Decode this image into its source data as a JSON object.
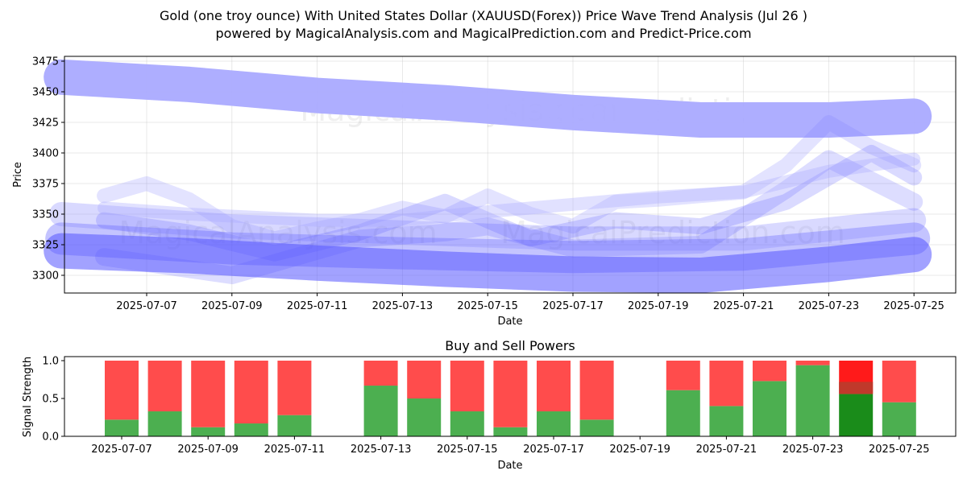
{
  "title": "Gold (one troy ounce) With United States Dollar (XAUUSD(Forex)) Price Wave Trend Analysis (Jul 26 )",
  "subtitle": "powered by MagicalAnalysis.com and MagicalPrediction.com and Predict-Price.com",
  "watermark": [
    "MagicalAnalysis.com",
    "MagicalPrediction.com"
  ],
  "chart_data": [
    {
      "type": "line",
      "title": "",
      "xlabel": "Date",
      "ylabel": "Price",
      "ylim": [
        3285,
        3478
      ],
      "xlim": [
        "2025-07-05",
        "2025-07-26"
      ],
      "yticks": [
        3300,
        3325,
        3350,
        3375,
        3400,
        3425,
        3450,
        3475
      ],
      "xticks": [
        "2025-07-07",
        "2025-07-09",
        "2025-07-11",
        "2025-07-13",
        "2025-07-15",
        "2025-07-17",
        "2025-07-19",
        "2025-07-21",
        "2025-07-23",
        "2025-07-25"
      ],
      "grid": true,
      "colors": {
        "light": "#aaaaff",
        "mid": "#8080ff",
        "dark": "#5555ff"
      },
      "series": [
        {
          "x": [
            "2025-07-05",
            "2025-07-08",
            "2025-07-11",
            "2025-07-14",
            "2025-07-17",
            "2025-07-20",
            "2025-07-23",
            "2025-07-25"
          ],
          "values": [
            3462,
            3456,
            3447,
            3441,
            3433,
            3427,
            3427,
            3430
          ]
        },
        {
          "x": [
            "2025-07-05",
            "2025-07-08",
            "2025-07-11",
            "2025-07-14",
            "2025-07-17",
            "2025-07-20",
            "2025-07-23",
            "2025-07-25"
          ],
          "values": [
            3320,
            3316,
            3310,
            3305,
            3301,
            3300,
            3309,
            3317
          ]
        },
        {
          "x": [
            "2025-07-05",
            "2025-07-09",
            "2025-07-13",
            "2025-07-17",
            "2025-07-21",
            "2025-07-25"
          ],
          "values": [
            3330,
            3322,
            3318,
            3315,
            3317,
            3330
          ]
        },
        {
          "x": [
            "2025-07-05",
            "2025-07-09",
            "2025-07-13",
            "2025-07-17",
            "2025-07-21",
            "2025-07-25"
          ],
          "values": [
            3350,
            3340,
            3335,
            3330,
            3330,
            3345
          ]
        },
        {
          "x": [
            "2025-07-06",
            "2025-07-07",
            "2025-07-08",
            "2025-07-09",
            "2025-07-10",
            "2025-07-11",
            "2025-07-12",
            "2025-07-13",
            "2025-07-14",
            "2025-07-15",
            "2025-07-16",
            "2025-07-17",
            "2025-07-18",
            "2025-07-19",
            "2025-07-20",
            "2025-07-21",
            "2025-07-22",
            "2025-07-23",
            "2025-07-24",
            "2025-07-25"
          ],
          "values": [
            3365,
            3375,
            3362,
            3340,
            3330,
            3338,
            3345,
            3355,
            3348,
            3365,
            3350,
            3340,
            3360,
            3362,
            3365,
            3368,
            3390,
            3425,
            3405,
            3390
          ]
        },
        {
          "x": [
            "2025-07-06",
            "2025-07-08",
            "2025-07-10",
            "2025-07-12",
            "2025-07-14",
            "2025-07-16",
            "2025-07-18",
            "2025-07-20",
            "2025-07-22",
            "2025-07-24",
            "2025-07-25"
          ],
          "values": [
            3345,
            3335,
            3318,
            3335,
            3360,
            3330,
            3345,
            3340,
            3360,
            3400,
            3380
          ]
        },
        {
          "x": [
            "2025-07-06",
            "2025-07-09",
            "2025-07-12",
            "2025-07-14",
            "2025-07-15",
            "2025-07-17",
            "2025-07-20",
            "2025-07-22",
            "2025-07-23",
            "2025-07-25"
          ],
          "values": [
            3315,
            3300,
            3330,
            3335,
            3340,
            3322,
            3325,
            3370,
            3395,
            3360
          ]
        },
        {
          "x": [
            "2025-07-06",
            "2025-07-08",
            "2025-07-11",
            "2025-07-13",
            "2025-07-15",
            "2025-07-17",
            "2025-07-19",
            "2025-07-21",
            "2025-07-23",
            "2025-07-25"
          ],
          "values": [
            3355,
            3350,
            3345,
            3345,
            3352,
            3358,
            3364,
            3368,
            3385,
            3395
          ]
        }
      ]
    },
    {
      "type": "bar",
      "title": "Buy and Sell Powers",
      "xlabel": "Date",
      "ylabel": "Signal Strength",
      "ylim": [
        0,
        1.05
      ],
      "yticks": [
        0.0,
        0.5,
        1.0
      ],
      "xticks": [
        "2025-07-07",
        "2025-07-09",
        "2025-07-11",
        "2025-07-13",
        "2025-07-15",
        "2025-07-17",
        "2025-07-19",
        "2025-07-21",
        "2025-07-23",
        "2025-07-25"
      ],
      "colors": {
        "buy": "#4caf50",
        "sell": "#ff4c4c",
        "buy_strong": "#1a8c1a",
        "sell_strong": "#ff1a1a",
        "mix": "#c0392b"
      },
      "categories": [
        "2025-07-07",
        "2025-07-08",
        "2025-07-09",
        "2025-07-10",
        "2025-07-11",
        "2025-07-13",
        "2025-07-14",
        "2025-07-15",
        "2025-07-16",
        "2025-07-17",
        "2025-07-18",
        "2025-07-20",
        "2025-07-21",
        "2025-07-22",
        "2025-07-23",
        "2025-07-24",
        "2025-07-25"
      ],
      "series": [
        {
          "values": [
            0.22,
            0.33,
            0.12,
            0.17,
            0.28,
            0.67,
            0.5,
            0.33,
            0.12,
            0.33,
            0.22,
            0.61,
            0.4,
            0.73,
            0.94,
            0.56,
            0.45
          ]
        },
        {
          "values": [
            0.78,
            0.67,
            0.88,
            0.83,
            0.72,
            0.33,
            0.5,
            0.67,
            0.88,
            0.67,
            0.78,
            0.39,
            0.6,
            0.27,
            0.06,
            0.44,
            0.55
          ]
        }
      ]
    }
  ]
}
